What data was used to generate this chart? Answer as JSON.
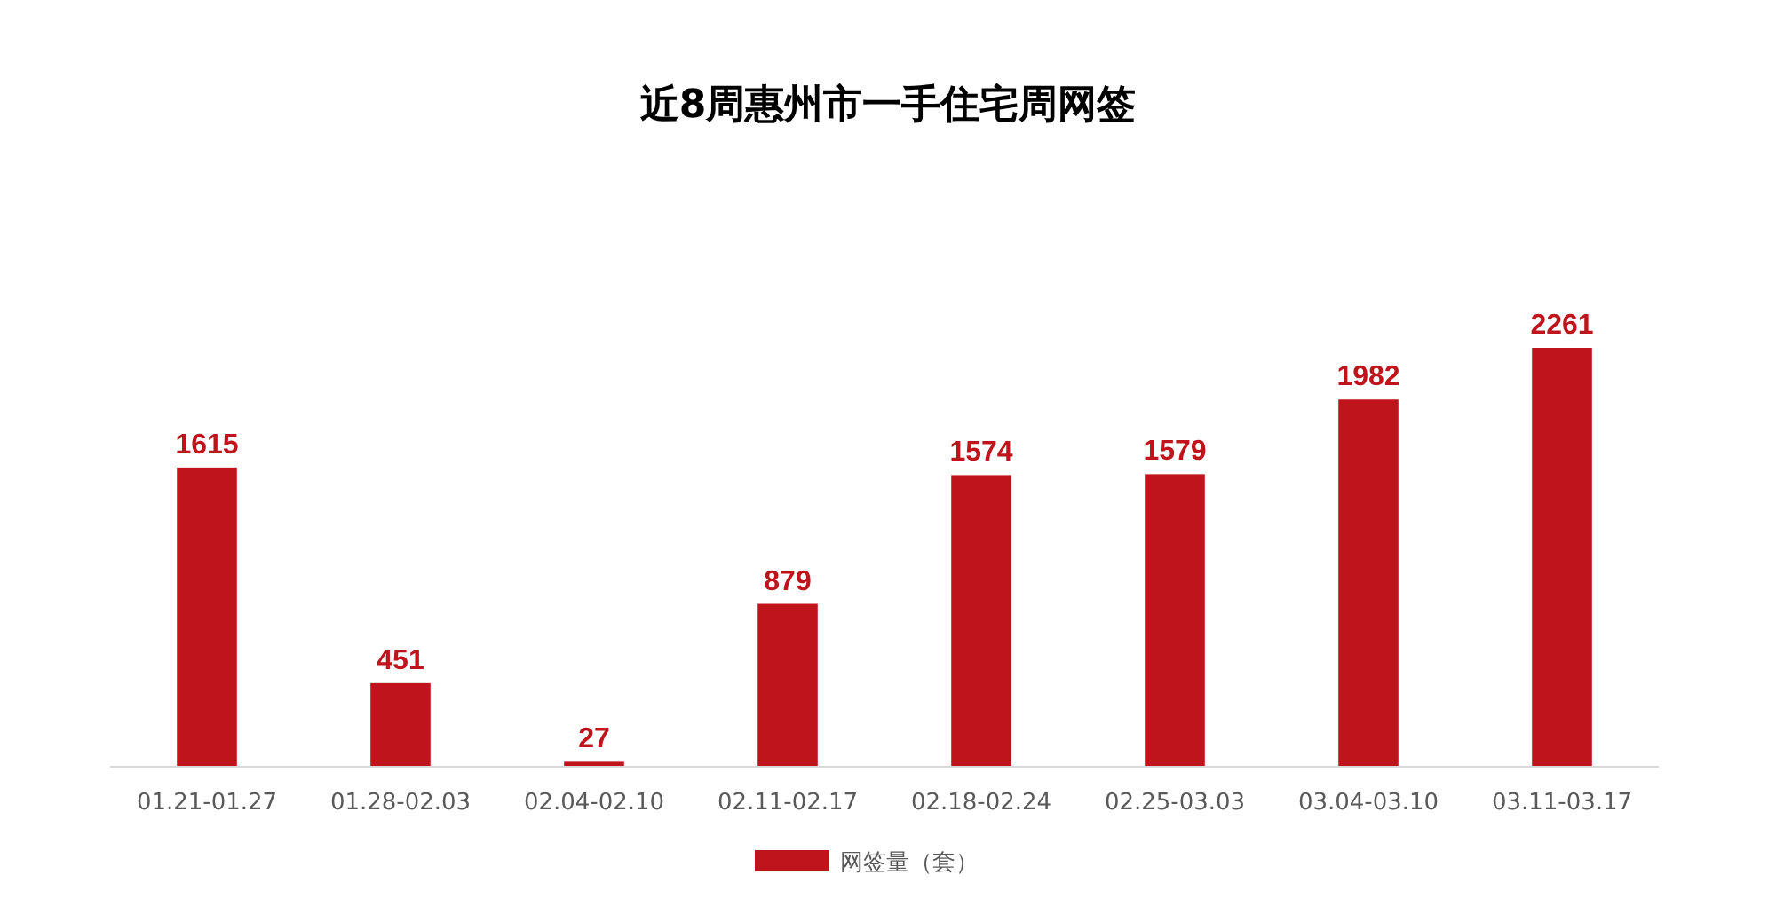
{
  "chart_data": {
    "type": "bar",
    "title": "近8周惠州市一手住宅周网签",
    "categories": [
      "01.21-01.27",
      "01.28-02.03",
      "02.04-02.10",
      "02.11-02.17",
      "02.18-02.24",
      "02.25-03.03",
      "03.04-03.10",
      "03.11-03.17"
    ],
    "series": [
      {
        "name": "网签量（套）",
        "color": "#c0141c",
        "values": [
          1615,
          451,
          27,
          879,
          1574,
          1579,
          1982,
          2261
        ]
      }
    ],
    "data_labels": true,
    "legend": "bottom",
    "grid": false
  }
}
